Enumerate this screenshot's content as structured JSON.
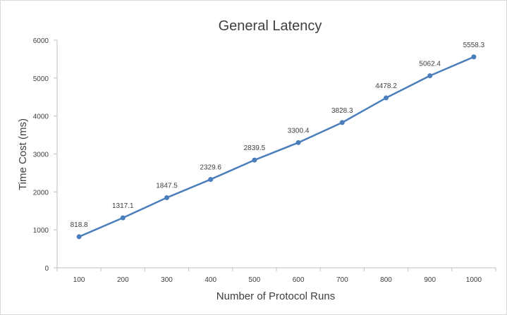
{
  "chart_data": {
    "type": "line",
    "title": "General Latency",
    "xlabel": "Number of Protocol Runs",
    "ylabel": "Time Cost (ms)",
    "categories": [
      "100",
      "200",
      "300",
      "400",
      "500",
      "600",
      "700",
      "800",
      "900",
      "1000"
    ],
    "series": [
      {
        "values": [
          818.8,
          1317.1,
          1847.5,
          2329.6,
          2839.5,
          3300.4,
          3828.3,
          4478.2,
          5062.4,
          5558.3
        ],
        "color": "#4a7ebb"
      }
    ],
    "data_labels": [
      "818.8",
      "1317.1",
      "1847.5",
      "2329.6",
      "2839.5",
      "3300.4",
      "3828.3",
      "4478.2",
      "5062.4",
      "5558.3"
    ],
    "yticks": [
      "0",
      "1000",
      "2000",
      "3000",
      "4000",
      "5000",
      "6000"
    ],
    "ylim": [
      0,
      6000
    ],
    "grid": false,
    "legend": "none"
  }
}
